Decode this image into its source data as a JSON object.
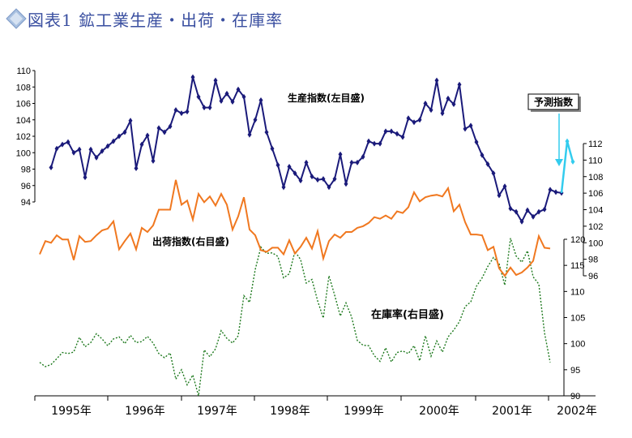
{
  "title": "図表1 鉱工業生産・出荷・在庫率",
  "colors": {
    "production": "#1a1a7a",
    "shipment": "#f07820",
    "inventory": "#1f7a1f",
    "forecast": "#33ccee",
    "title": "#3a4fa0",
    "title_icon": "#a8c0e0"
  },
  "chart_data": {
    "type": "line",
    "x_labels": [
      "1995年",
      "1996年",
      "1997年",
      "1998年",
      "1999年",
      "2000年",
      "2001年",
      "2002年"
    ],
    "left_axis": {
      "ticks": [
        "110",
        "108",
        "106",
        "104",
        "102",
        "100",
        "98",
        "96",
        "94"
      ],
      "range": [
        94,
        110
      ]
    },
    "right_upper_axis": {
      "ticks": [
        "112",
        "110",
        "108",
        "106",
        "104",
        "102",
        "100",
        "98",
        "96"
      ],
      "range": [
        96,
        112
      ]
    },
    "right_lower_axis": {
      "ticks": [
        "120",
        "115",
        "110",
        "105",
        "100",
        "95",
        "90"
      ],
      "range": [
        90,
        120
      ]
    },
    "series": [
      {
        "name": "生産指数(左目盛)",
        "axis": "left",
        "values": [
          98.2,
          100.5,
          101,
          101.3,
          100,
          100.4,
          97,
          100.4,
          99.4,
          100.2,
          100.8,
          101.4,
          102,
          102.5,
          103.9,
          98.1,
          101,
          102.1,
          99,
          103,
          102.5,
          103.2,
          105.2,
          104.8,
          105,
          109.2,
          106.8,
          105.5,
          105.5,
          108.8,
          106.3,
          107.2,
          106.2,
          107.7,
          106.8,
          102.2,
          104,
          106.4,
          102.5,
          100.5,
          98.5,
          95.8,
          98.3,
          97.5,
          96.6,
          98.8,
          97.1,
          96.7,
          96.8,
          95.8,
          96.8,
          99.8,
          96.2,
          98.8,
          98.8,
          99.5,
          101.4,
          101.1,
          101.1,
          102.6,
          102.6,
          102.3,
          101.9,
          104.2,
          103.7,
          104,
          106,
          105.2,
          108.8,
          104.8,
          106.6,
          105.9,
          108.3,
          102.9,
          103.3,
          101.3,
          99.7,
          98.6,
          97.5,
          94.8,
          95.9,
          93.2,
          92.8,
          91.6,
          93,
          92.2,
          92.8,
          93.1,
          95.5,
          95.2,
          95.1
        ]
      },
      {
        "name": "予測指数",
        "axis": "left",
        "values": [
          95.1,
          101.4,
          98.9
        ]
      },
      {
        "name": "出荷指数(右目盛)",
        "axis": "right_upper",
        "values": [
          98.6,
          100.2,
          100,
          100.9,
          100.4,
          100.4,
          97.9,
          100.8,
          100.1,
          100.2,
          100.9,
          101.5,
          101.7,
          102.6,
          99.2,
          100.2,
          101.1,
          99.2,
          101.8,
          101.3,
          102.1,
          104,
          104,
          104,
          107.6,
          104.6,
          105.1,
          102.8,
          105.9,
          104.9,
          105.6,
          104.5,
          105.9,
          104.6,
          101.6,
          103.2,
          105.5,
          101.6,
          100.9,
          99.1,
          98.9,
          99.4,
          99.4,
          98.6,
          100.3,
          98.7,
          99.5,
          100.6,
          99.3,
          101.4,
          98.1,
          100.2,
          101,
          100.6,
          101.3,
          101.3,
          101.8,
          102,
          102.4,
          103.1,
          102.9,
          103.3,
          102.9,
          103.8,
          103.6,
          104.3,
          106.1,
          105,
          105.5,
          105.7,
          105.8,
          105.6,
          106.6,
          103.8,
          104.6,
          102.5,
          101,
          101,
          100.9,
          99.1,
          99.5,
          96.9,
          96,
          97,
          96.1,
          96.4,
          97,
          97.8,
          100.8,
          99.4,
          99.3
        ]
      },
      {
        "name": "在庫率(右目盛)",
        "axis": "right_lower",
        "values": [
          96.4,
          95.6,
          96,
          97.1,
          98.3,
          98.1,
          98.4,
          101.2,
          99.4,
          100.2,
          101.9,
          100.9,
          99.6,
          100.9,
          101.3,
          100,
          101.6,
          100.2,
          100.4,
          101.4,
          100.1,
          98.1,
          97.3,
          98.2,
          93.2,
          95,
          92.1,
          94,
          90,
          98.8,
          97.5,
          99,
          102.5,
          101,
          100.1,
          101.5,
          109.2,
          107.9,
          114.2,
          118.5,
          117.3,
          117.4,
          116.7,
          112.6,
          113.4,
          117.7,
          116.1,
          111.6,
          112.3,
          108.2,
          104.9,
          113,
          109.3,
          105.3,
          107.8,
          105.1,
          100.6,
          99.7,
          99.6,
          97.7,
          96.6,
          99.2,
          96.5,
          98.3,
          98.6,
          98.1,
          99.6,
          96.7,
          101.5,
          97.6,
          100.5,
          98.4,
          101.3,
          102.6,
          104.2,
          107.1,
          108,
          111,
          112.6,
          114.8,
          116.5,
          115.3,
          111.2,
          120.2,
          116.8,
          115.6,
          117.8,
          112.8,
          111.4,
          102.1,
          96.4
        ]
      }
    ],
    "annotations": {
      "production": "生産指数(左目盛)",
      "shipment": "出荷指数(右目盛)",
      "inventory": "在庫率(右目盛)",
      "forecast": "予測指数"
    }
  }
}
